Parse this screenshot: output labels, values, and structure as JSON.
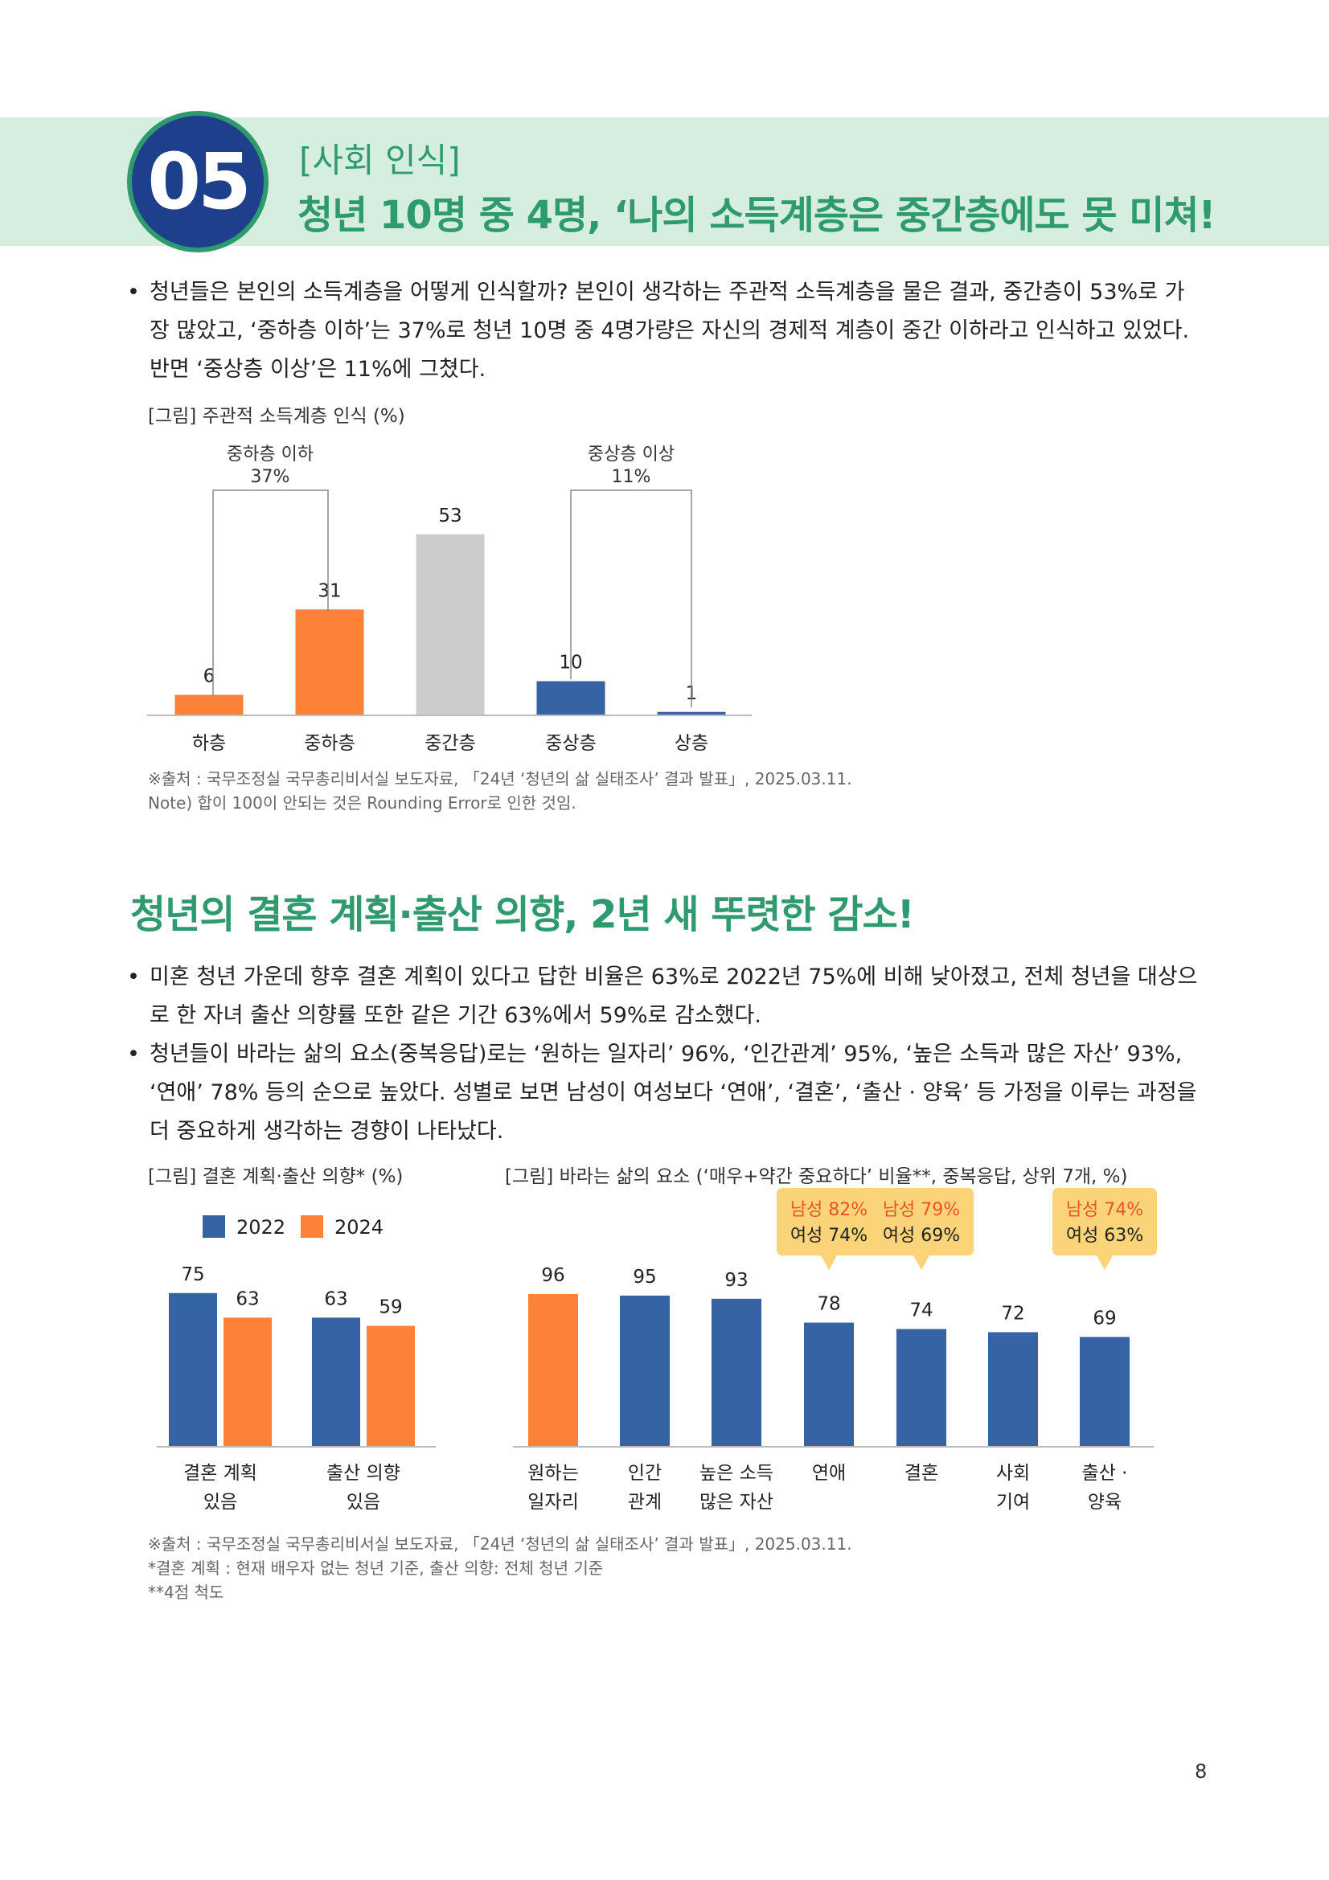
{
  "header": {
    "number": "05",
    "category": "[사회 인식]",
    "title": "청년 10명 중 4명, ‘나의 소득계층은 중간층에도 못 미쳐!"
  },
  "section1": {
    "bullet": "청년들은 본인의 소득계층을 어떻게 인식할까? 본인이 생각하는 주관적 소득계층을 물은 결과, 중간층이 53%로 가장 많았고, ‘중하층 이하’는 37%로 청년 10명 중 4명가량은 자신의 경제적 계층이 중간 이하라고 인식하고 있었다. 반면 ‘중상층 이상’은 11%에 그쳤다.",
    "caption": "[그림] 주관적 소득계층 인식 (%)",
    "source": "※출처 : 국무조정실 국무총리비서실 보도자료, 「24년 ‘청년의 삶 실태조사’ 결과 발표」, 2025.03.11.",
    "note": "Note) 합이 100이 안되는 것은 Rounding Error로 인한 것임."
  },
  "section2": {
    "title": "청년의 결혼 계획·출산 의향, 2년 새 뚜렷한 감소!",
    "bullet1": "미혼 청년 가운데 향후 결혼 계획이 있다고 답한 비율은 63%로 2022년 75%에 비해 낮아졌고, 전체 청년을 대상으로 한 자녀 출산 의향률 또한 같은 기간 63%에서 59%로 감소했다.",
    "bullet2": "청년들이 바라는 삶의 요소(중복응답)로는 ‘원하는 일자리’ 96%, ‘인간관계’ 95%, ‘높은 소득과 많은 자산’ 93%, ‘연애’ 78% 등의 순으로 높았다. 성별로 보면 남성이 여성보다 ‘연애’, ‘결혼’, ‘출산 · 양육’ 등 가정을 이루는 과정을 더 중요하게 생각하는 경향이 나타났다.",
    "caption_left": "[그림] 결혼 계획·출산 의향* (%)",
    "caption_right": "[그림] 바라는 삶의 요소 (‘매우+약간 중요하다’ 비율**, 중복응답, 상위 7개, %)",
    "source": "※출처 : 국무조정실 국무총리비서실 보도자료, 「24년 ‘청년의 삶 실태조사’ 결과 발표」, 2025.03.11.",
    "note1": "*결혼 계획 : 현재 배우자 없는 청년 기준, 출산 의향: 전체 청년 기준",
    "note2": "**4점 척도"
  },
  "page_number": "8",
  "chart_data": [
    {
      "id": "income",
      "type": "bar",
      "categories": [
        "하층",
        "중하층",
        "중간층",
        "중상층",
        "상층"
      ],
      "values": [
        6,
        31,
        53,
        10,
        1
      ],
      "colors": [
        "#fd8136",
        "#fd8136",
        "#cccccc",
        "#3563a4",
        "#3563a4"
      ],
      "brackets": [
        {
          "label": "중하층 이하",
          "value": "37%"
        },
        {
          "label": "중상층 이상",
          "value": "11%"
        }
      ]
    },
    {
      "id": "marriage",
      "type": "bar",
      "categories": [
        "결혼 계획|있음",
        "출산 의향|있음"
      ],
      "series": [
        {
          "name": "2022",
          "values": [
            75,
            63
          ],
          "color": "#3563a4"
        },
        {
          "name": "2024",
          "values": [
            63,
            59
          ],
          "color": "#fd8136"
        }
      ]
    },
    {
      "id": "life",
      "type": "bar",
      "categories": [
        "원하는|일자리",
        "인간|관계",
        "높은 소득|많은 자산",
        "연애",
        "결혼",
        "사회|기여",
        "출산 ·|양육"
      ],
      "values": [
        96,
        95,
        93,
        78,
        74,
        72,
        69
      ],
      "colors": [
        "#fd8136",
        "#3563a4",
        "#3563a4",
        "#3563a4",
        "#3563a4",
        "#3563a4",
        "#3563a4"
      ],
      "callouts": [
        {
          "index": 3,
          "male": "남성 82%",
          "female": "여성 74%"
        },
        {
          "index": 4,
          "male": "남성 79%",
          "female": "여성 69%"
        },
        {
          "index": 6,
          "male": "남성 74%",
          "female": "여성 63%"
        }
      ]
    }
  ]
}
